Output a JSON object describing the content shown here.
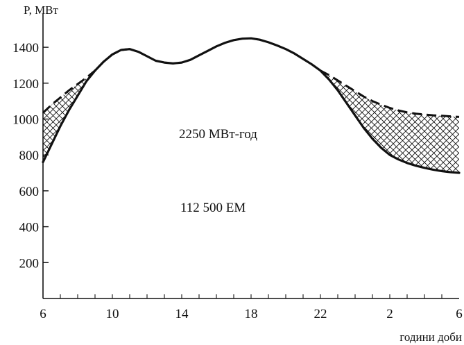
{
  "chart_data": {
    "type": "line",
    "ylabel": "P, МВт",
    "xlabel": "години доби",
    "x_ticks": [
      "6",
      "10",
      "14",
      "18",
      "22",
      "2",
      "6"
    ],
    "y_ticks": [
      200,
      400,
      600,
      800,
      1000,
      1200,
      1400
    ],
    "ylim": [
      0,
      1450
    ],
    "x_hours": [
      6,
      30
    ],
    "grid": false,
    "legend": "none",
    "series": [
      {
        "style": "solid",
        "x": [
          6,
          6.5,
          7,
          7.5,
          8,
          8.5,
          9,
          9.5,
          10,
          10.5,
          11,
          11.5,
          12,
          12.5,
          13,
          13.5,
          14,
          14.5,
          15,
          15.5,
          16,
          16.5,
          17,
          17.5,
          18,
          18.5,
          19,
          19.5,
          20,
          20.5,
          21,
          21.5,
          22,
          22.5,
          23,
          23.5,
          24,
          24.5,
          25,
          25.5,
          26,
          26.5,
          27,
          27.5,
          28,
          28.5,
          29,
          29.5,
          30
        ],
        "y": [
          760,
          860,
          960,
          1050,
          1130,
          1210,
          1270,
          1320,
          1360,
          1385,
          1390,
          1375,
          1350,
          1325,
          1315,
          1310,
          1315,
          1330,
          1355,
          1380,
          1405,
          1425,
          1440,
          1448,
          1450,
          1442,
          1428,
          1410,
          1390,
          1365,
          1335,
          1305,
          1270,
          1220,
          1160,
          1090,
          1020,
          950,
          890,
          840,
          800,
          775,
          755,
          740,
          728,
          718,
          710,
          704,
          700
        ]
      },
      {
        "style": "dashed",
        "x": [
          6,
          6.5,
          7,
          7.5,
          8,
          8.5,
          9,
          9.5,
          10,
          10.5,
          11,
          22,
          22.5,
          23,
          23.5,
          24,
          24.5,
          25,
          25.5,
          26,
          26.5,
          27,
          27.5,
          28,
          28.5,
          29,
          29.5,
          30
        ],
        "y": [
          1035,
          1080,
          1120,
          1160,
          1195,
          1230,
          1270,
          1320,
          1360,
          1385,
          1390,
          1270,
          1245,
          1215,
          1185,
          1155,
          1125,
          1100,
          1080,
          1062,
          1048,
          1037,
          1030,
          1025,
          1021,
          1018,
          1015,
          1012
        ]
      }
    ],
    "annotations": [
      "2250  МВт-год",
      "112 500 ЕМ"
    ]
  }
}
